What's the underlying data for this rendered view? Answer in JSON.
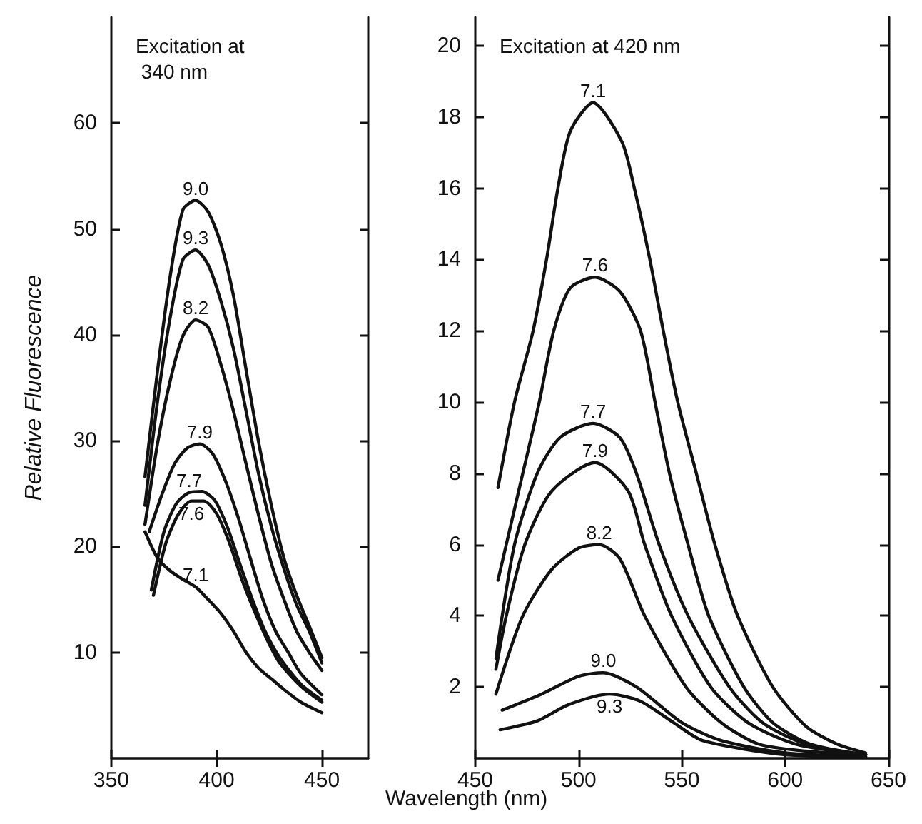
{
  "chart_data": [
    {
      "type": "line",
      "title": "Excitation at 340 nm",
      "ylabel": "Relative Fluorescence",
      "xlim": [
        350,
        472
      ],
      "xticks": [
        350,
        400,
        450
      ],
      "ylim": [
        0,
        70
      ],
      "yticks": [
        10,
        20,
        30,
        40,
        50,
        60
      ],
      "marker": "none",
      "line_style": "solid",
      "series": [
        {
          "name": "9.0",
          "color": "#111111",
          "x": [
            366,
            372,
            378,
            384,
            390,
            396,
            402,
            408,
            414,
            420,
            426,
            432,
            438,
            444,
            450
          ],
          "values": [
            26.6,
            36.7,
            45.6,
            51.8,
            52.7,
            51.6,
            48.6,
            43.7,
            36.7,
            29.8,
            23.9,
            18.9,
            15.4,
            12.5,
            9.5
          ]
        },
        {
          "name": "9.3",
          "color": "#111111",
          "x": [
            366,
            372,
            378,
            384,
            390,
            396,
            402,
            408,
            414,
            420,
            426,
            432,
            438,
            444,
            450
          ],
          "values": [
            23.9,
            33.8,
            41.7,
            47.1,
            48,
            46.6,
            43.2,
            38.7,
            32.8,
            26.8,
            21.9,
            17.9,
            14.5,
            12,
            9
          ]
        },
        {
          "name": "8.2",
          "color": "#111111",
          "x": [
            366,
            372,
            378,
            384,
            390,
            396,
            402,
            408,
            414,
            420,
            426,
            432,
            438,
            444,
            450
          ],
          "values": [
            22.1,
            29.8,
            35.7,
            39.9,
            41.4,
            40.7,
            37.2,
            32.8,
            27.8,
            22.9,
            18.4,
            15,
            12,
            10,
            8.3
          ]
        },
        {
          "name": "7.9",
          "color": "#111111",
          "x": [
            368,
            374,
            380,
            386,
            392,
            398,
            404,
            410,
            416,
            422,
            428,
            434,
            440,
            450
          ],
          "values": [
            21.4,
            24.9,
            27.8,
            29.3,
            29.7,
            28.8,
            26.3,
            22.9,
            18.9,
            15,
            12,
            10,
            8,
            6
          ]
        },
        {
          "name": "7.7",
          "color": "#111111",
          "x": [
            369,
            375,
            381,
            387,
            393,
            399,
            405,
            411,
            417,
            423,
            430,
            440,
            450
          ],
          "values": [
            15.9,
            21.4,
            24.1,
            25.1,
            25.2,
            24.4,
            21.9,
            18.4,
            15,
            12,
            9.5,
            7,
            5.5
          ]
        },
        {
          "name": "7.6",
          "color": "#111111",
          "x": [
            370,
            376,
            382,
            388,
            394,
            400,
            406,
            412,
            418,
            424,
            430,
            440,
            450
          ],
          "values": [
            15.4,
            20.4,
            23.1,
            24.3,
            24.3,
            23.1,
            20.4,
            16.9,
            13.9,
            11.2,
            9,
            6.8,
            5.3
          ]
        },
        {
          "name": "7.1",
          "color": "#111111",
          "x": [
            366,
            372,
            378,
            384,
            390,
            396,
            402,
            408,
            414,
            420,
            426,
            432,
            440,
            450
          ],
          "values": [
            21.4,
            18.9,
            17.7,
            16.9,
            16.2,
            15,
            13.7,
            12,
            10,
            8.5,
            7.5,
            6.5,
            5.3,
            4.3
          ]
        }
      ]
    },
    {
      "type": "line",
      "title": "Excitation at 420 nm",
      "xlabel": "Wavelength (nm)",
      "xlim": [
        450,
        650
      ],
      "xticks": [
        450,
        500,
        550,
        600,
        650
      ],
      "ylim": [
        0,
        20.8
      ],
      "yticks": [
        2,
        4,
        6,
        8,
        10,
        12,
        14,
        16,
        18,
        20
      ],
      "marker": "none",
      "line_style": "solid",
      "series": [
        {
          "name": "7.1",
          "color": "#111111",
          "x": [
            461,
            469,
            478,
            484.5,
            490,
            496,
            507,
            521,
            527,
            534.5,
            541,
            548,
            557,
            566,
            577,
            594,
            610,
            625,
            639
          ],
          "values": [
            7.6,
            10,
            12,
            14,
            16,
            17.6,
            18.4,
            17.3,
            16,
            14,
            12,
            10,
            8,
            6,
            4,
            2,
            0.9,
            0.4,
            0.15
          ]
        },
        {
          "name": "7.6",
          "color": "#111111",
          "x": [
            461,
            473,
            481,
            488,
            496,
            508,
            520,
            530,
            537,
            544,
            553,
            563,
            580,
            594,
            612,
            639
          ],
          "values": [
            5,
            8,
            10,
            12,
            13.2,
            13.5,
            13.1,
            12,
            10,
            8,
            6,
            4,
            2,
            1,
            0.4,
            0.1
          ]
        },
        {
          "name": "7.7",
          "color": "#111111",
          "x": [
            460,
            469,
            480,
            491,
            507,
            520,
            528,
            539,
            553,
            573,
            589,
            610,
            639
          ],
          "values": [
            2.8,
            6,
            8,
            9,
            9.4,
            9,
            8,
            6,
            4,
            2,
            1,
            0.4,
            0.1
          ]
        },
        {
          "name": "7.9",
          "color": "#111111",
          "x": [
            460,
            465,
            474,
            487,
            508,
            524,
            532,
            545,
            564,
            582,
            605,
            639
          ],
          "values": [
            2.5,
            4,
            6,
            7.5,
            8.3,
            7.5,
            6,
            4,
            2,
            1,
            0.4,
            0.1
          ]
        },
        {
          "name": "8.2",
          "color": "#111111",
          "x": [
            460,
            473,
            487,
            500,
            510,
            520,
            532,
            552,
            569,
            587,
            610,
            639
          ],
          "values": [
            1.8,
            4,
            5.3,
            5.9,
            6,
            5.6,
            4,
            2,
            1,
            0.4,
            0.2,
            0.1
          ]
        },
        {
          "name": "9.0",
          "color": "#111111",
          "x": [
            463,
            482,
            500,
            512,
            528,
            550,
            569,
            600,
            639
          ],
          "values": [
            1.35,
            1.8,
            2.3,
            2.4,
            2,
            1,
            0.5,
            0.15,
            0.05
          ]
        },
        {
          "name": "9.3",
          "color": "#111111",
          "x": [
            462,
            480,
            495,
            515,
            530,
            546,
            560,
            600,
            639
          ],
          "values": [
            0.8,
            1.05,
            1.5,
            1.8,
            1.6,
            1,
            0.5,
            0.1,
            0.05
          ]
        }
      ]
    }
  ]
}
